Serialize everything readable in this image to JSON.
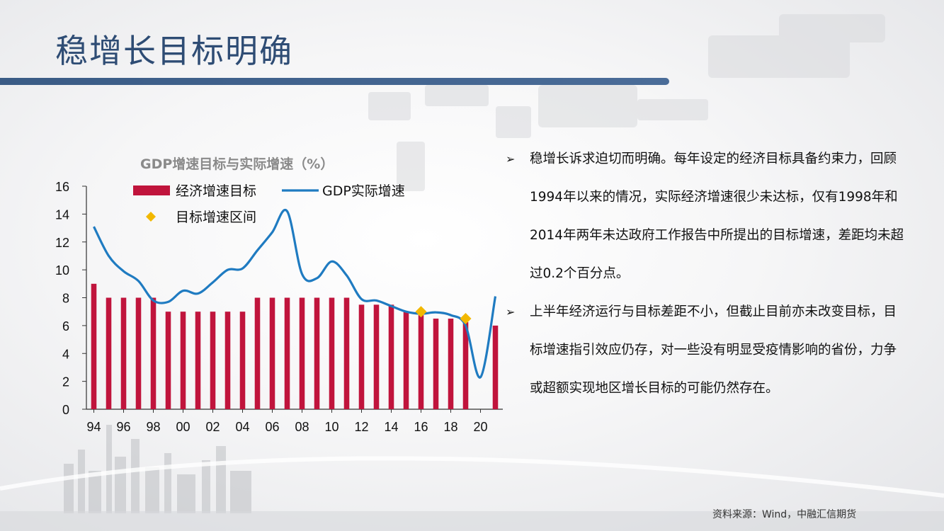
{
  "slide": {
    "title": "稳增长目标明确",
    "source": "资料来源：Wind，中融汇信期货"
  },
  "bullets": [
    {
      "marker": "➢",
      "text": "稳增长诉求迫切而明确。每年设定的经济目标具备约束力，回顾1994年以来的情况，实际经济增速很少未达标，仅有1998年和2014年两年未达政府工作报告中所提出的目标增速，差距均未超过0.2个百分点。"
    },
    {
      "marker": "➢",
      "text": "上半年经济运行与目标差距不小，但截止目前亦未改变目标，目标增速指引效应仍存，对一些没有明显受疫情影响的省份，力争或超额实现地区增长目标的可能仍然存在。"
    }
  ],
  "colors": {
    "title": "#2e4c74",
    "bar": "#c0143c",
    "line": "#1f7bc1",
    "marker": "#f2b800"
  },
  "chart_data": {
    "type": "bar",
    "title": "GDP增速目标与实际增速（%）",
    "ylim": [
      0,
      16
    ],
    "y_ticks": [
      0,
      2,
      4,
      6,
      8,
      10,
      12,
      14,
      16
    ],
    "x": [
      1994,
      1995,
      1996,
      1997,
      1998,
      1999,
      2000,
      2001,
      2002,
      2003,
      2004,
      2005,
      2006,
      2007,
      2008,
      2009,
      2010,
      2011,
      2012,
      2013,
      2014,
      2015,
      2016,
      2017,
      2018,
      2019,
      2020,
      2021
    ],
    "x_tick_labels": [
      "94",
      "96",
      "98",
      "00",
      "02",
      "04",
      "06",
      "08",
      "10",
      "12",
      "14",
      "16",
      "18",
      "20"
    ],
    "series": [
      {
        "name": "经济增速目标",
        "type": "bar",
        "values": [
          9,
          8,
          8,
          8,
          8,
          7,
          7,
          7,
          7,
          7,
          7,
          8,
          8,
          8,
          8,
          8,
          8,
          8,
          7.5,
          7.5,
          7.5,
          7,
          6.75,
          6.5,
          6.5,
          6.25,
          null,
          6
        ]
      },
      {
        "name": "GDP实际增速",
        "type": "line",
        "values": [
          13.1,
          11,
          9.9,
          9.2,
          7.8,
          7.7,
          8.5,
          8.3,
          9.1,
          10,
          10.1,
          11.4,
          12.7,
          14.2,
          9.7,
          9.4,
          10.6,
          9.6,
          7.9,
          7.8,
          7.4,
          7.0,
          6.85,
          6.95,
          6.75,
          6.0,
          2.3,
          8.1
        ]
      },
      {
        "name": "目标增速区间",
        "type": "marker",
        "points": [
          {
            "x": 2016,
            "y": 7
          },
          {
            "x": 2019,
            "y": 6.5
          }
        ]
      }
    ],
    "legend_position": "top-left",
    "grid": false
  }
}
